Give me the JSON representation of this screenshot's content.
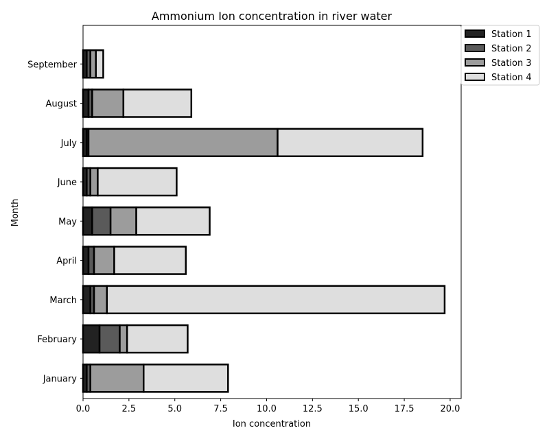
{
  "chart_data": {
    "type": "bar",
    "orientation": "horizontal",
    "stacked": true,
    "title": "Ammonium Ion  concentration in river water",
    "xlabel": "Ion concentration",
    "ylabel": "Month",
    "xlim": [
      0,
      20.6
    ],
    "xticks": [
      "0.0",
      "2.5",
      "5.0",
      "7.5",
      "10.0",
      "12.5",
      "15.0",
      "17.5",
      "20.0"
    ],
    "categories": [
      "January",
      "February",
      "March",
      "April",
      "May",
      "June",
      "July",
      "August",
      "September"
    ],
    "series": [
      {
        "name": "Station 1",
        "color": "#222222",
        "values": [
          0.2,
          0.9,
          0.4,
          0.3,
          0.5,
          0.2,
          0.2,
          0.3,
          0.2
        ]
      },
      {
        "name": "Station 2",
        "color": "#5a5a5a",
        "values": [
          0.2,
          1.1,
          0.2,
          0.3,
          1.0,
          0.2,
          0.1,
          0.2,
          0.2
        ]
      },
      {
        "name": "Station 3",
        "color": "#9c9c9c",
        "values": [
          2.9,
          0.4,
          0.7,
          1.1,
          1.4,
          0.4,
          10.3,
          1.7,
          0.3
        ]
      },
      {
        "name": "Station 4",
        "color": "#dedede",
        "values": [
          4.6,
          3.3,
          18.4,
          3.9,
          4.0,
          4.3,
          7.9,
          3.7,
          0.4
        ]
      }
    ],
    "grid": false,
    "legend_position": "top-right outside"
  }
}
